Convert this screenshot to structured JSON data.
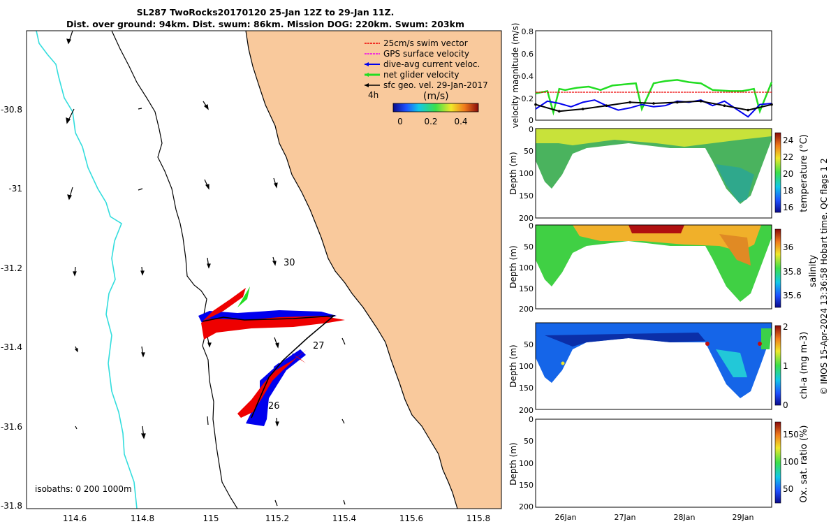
{
  "header": {
    "title_line1": "SL287 TwoRocks20170120 25-Jan 12Z to 29-Jan 11Z.",
    "title_line2": "Dist. over ground: 94km. Dist. swum: 86km. Mission DOG: 220km. Swum: 203km"
  },
  "colors": {
    "land": "#f9c99c",
    "isobath0": "#000000",
    "isobath200": "#000000",
    "isobath1000": "#33dddd",
    "track_blue": "#0000ee",
    "track_red": "#ee0000",
    "net_green": "#22dd22"
  },
  "map": {
    "legend": {
      "items": [
        {
          "label": "25cm/s swim vector",
          "color": "#ee0000"
        },
        {
          "label": "GPS surface velocity",
          "color": "#ee00ee"
        },
        {
          "label": "dive-avg current veloc.",
          "color": "#0000ee"
        },
        {
          "label": "net glider velocity",
          "color": "#22dd22"
        },
        {
          "label": "sfc geo. vel. 29-Jan-2017",
          "color": "#000000"
        }
      ],
      "interval": "4h",
      "colorbar_title": "(m/s)",
      "colorbar_ticks": [
        "0",
        "0.2",
        "0.4"
      ]
    },
    "isobath_label": "isobaths: 0   200  1000m",
    "day_labels": [
      "30",
      "27",
      "26"
    ],
    "x_ticks": [
      "114.6",
      "114.8",
      "115",
      "115.2",
      "115.4",
      "115.6",
      "115.8"
    ],
    "y_ticks": [
      "-30.8",
      "-31",
      "-31.2",
      "-31.4",
      "-31.6",
      "-31.8"
    ]
  },
  "chart_data": [
    {
      "type": "line",
      "title": "",
      "ylabel": "velocity magnitude (m/s)",
      "ylim": [
        0,
        0.8
      ],
      "y_ticks": [
        "0.8",
        "0.6",
        "0.4",
        "0.2",
        "0"
      ],
      "xlim_days": [
        25.5,
        29.5
      ],
      "series": [
        {
          "name": "net glider velocity",
          "color": "#22dd22",
          "x": [
            25.5,
            25.7,
            25.8,
            25.9,
            26.0,
            26.2,
            26.4,
            26.6,
            26.8,
            27.0,
            27.2,
            27.3,
            27.5,
            27.7,
            27.9,
            28.1,
            28.3,
            28.5,
            28.8,
            29.0,
            29.2,
            29.3,
            29.5
          ],
          "values": [
            0.24,
            0.26,
            0.07,
            0.28,
            0.27,
            0.29,
            0.3,
            0.27,
            0.31,
            0.32,
            0.33,
            0.1,
            0.33,
            0.35,
            0.36,
            0.34,
            0.33,
            0.27,
            0.26,
            0.26,
            0.28,
            0.08,
            0.34
          ]
        },
        {
          "name": "dive-avg current veloc.",
          "color": "#0000ee",
          "x": [
            25.5,
            25.7,
            25.9,
            26.1,
            26.3,
            26.5,
            26.7,
            26.9,
            27.1,
            27.3,
            27.5,
            27.7,
            27.9,
            28.1,
            28.3,
            28.5,
            28.7,
            28.9,
            29.1,
            29.3,
            29.5
          ],
          "values": [
            0.1,
            0.17,
            0.15,
            0.12,
            0.16,
            0.18,
            0.13,
            0.09,
            0.11,
            0.14,
            0.12,
            0.13,
            0.17,
            0.16,
            0.18,
            0.13,
            0.17,
            0.1,
            0.03,
            0.14,
            0.15
          ]
        },
        {
          "name": "sfc geo. vel.",
          "color": "#000000",
          "x": [
            25.5,
            25.9,
            26.3,
            26.7,
            27.1,
            27.5,
            27.9,
            28.3,
            28.7,
            29.1,
            29.5
          ],
          "values": [
            0.14,
            0.08,
            0.1,
            0.13,
            0.16,
            0.15,
            0.16,
            0.17,
            0.13,
            0.09,
            0.14
          ]
        },
        {
          "name": "25cm/s swim vector",
          "color": "#ee0000",
          "x": [
            25.5,
            29.5
          ],
          "values": [
            0.25,
            0.25
          ]
        }
      ]
    },
    {
      "type": "heatmap",
      "ylabel": "Depth (m)",
      "colorbar_label": "temperature (°C)",
      "colorbar_ticks": [
        "24",
        "22",
        "20",
        "18",
        "16"
      ],
      "depth_ticks": [
        "0",
        "50",
        "100",
        "150",
        "200"
      ],
      "colormap": "parula-like"
    },
    {
      "type": "heatmap",
      "ylabel": "Depth (m)",
      "colorbar_label": "salinity",
      "colorbar_ticks": [
        "36",
        "35.8",
        "35.6"
      ],
      "depth_ticks": [
        "0",
        "50",
        "100",
        "150",
        "200"
      ],
      "colormap": "jet"
    },
    {
      "type": "heatmap",
      "ylabel": "Depth (m)",
      "colorbar_label": "chl-a (mg m-3)",
      "colorbar_ticks": [
        "2",
        "1",
        "0"
      ],
      "depth_ticks": [
        "50",
        "100",
        "150",
        "200"
      ],
      "colormap": "jet"
    },
    {
      "type": "heatmap",
      "ylabel": "Depth (m)",
      "colorbar_label": "Ox. sat. ratio (%)",
      "colorbar_ticks": [
        "150",
        "100",
        "50"
      ],
      "depth_ticks": [
        "0",
        "50",
        "100",
        "150",
        "200"
      ],
      "x_ticks": [
        "26Jan",
        "27Jan",
        "28Jan",
        "29Jan"
      ],
      "colormap": "jet"
    }
  ],
  "footer": {
    "side_note": "© IMOS 15-Apr-2024 13:36:58 Hobart time. QC flags 1  2"
  }
}
